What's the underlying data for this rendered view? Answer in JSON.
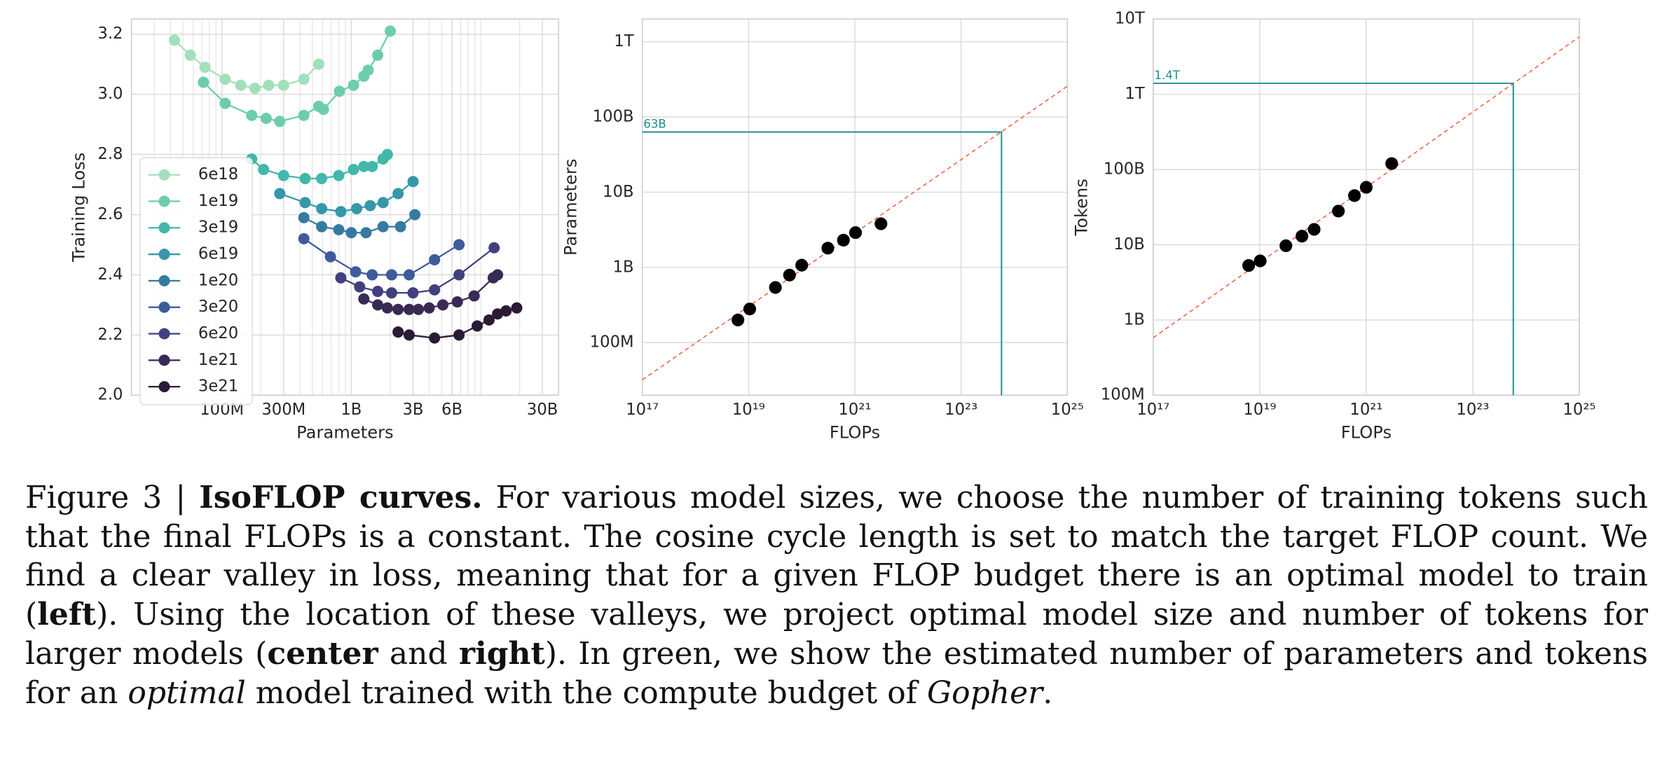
{
  "chart_data": [
    {
      "type": "line",
      "xlabel": "Parameters",
      "ylabel": "Training Loss",
      "xscale": "log",
      "xlim": [
        20000000,
        40000000000
      ],
      "ylim": [
        2.0,
        3.25
      ],
      "xticks": [
        {
          "value": 100000000,
          "label": "100M"
        },
        {
          "value": 300000000,
          "label": "300M"
        },
        {
          "value": 1000000000,
          "label": "1B"
        },
        {
          "value": 3000000000,
          "label": "3B"
        },
        {
          "value": 6000000000,
          "label": "6B"
        },
        {
          "value": 30000000000,
          "label": "30B"
        }
      ],
      "yticks": [
        {
          "value": 2,
          "label": "2.0"
        },
        2.2,
        2.4,
        2.6,
        2.8,
        {
          "value": 3,
          "label": "3.0"
        },
        3.2
      ],
      "grid": true,
      "minor_grid": true,
      "legend": "center left",
      "series": [
        {
          "name": "6e18",
          "color": "#a3dfba",
          "x": [
            43000000,
            57000000,
            74000000,
            106000000,
            140000000,
            180000000,
            230000000,
            300000000,
            430000000,
            560000000
          ],
          "values": [
            3.18,
            3.13,
            3.09,
            3.05,
            3.03,
            3.02,
            3.03,
            3.03,
            3.05,
            3.1
          ]
        },
        {
          "name": "1e19",
          "color": "#6ccdad",
          "x": [
            72000000,
            106000000,
            170000000,
            220000000,
            280000000,
            430000000,
            560000000,
            610000000,
            810000000,
            1040000000,
            1250000000,
            1350000000,
            1600000000,
            2000000000
          ],
          "values": [
            3.04,
            2.97,
            2.93,
            2.92,
            2.91,
            2.93,
            2.96,
            2.95,
            3.01,
            3.03,
            3.06,
            3.08,
            3.13,
            3.21
          ]
        },
        {
          "name": "3e19",
          "color": "#42b7aa",
          "x": [
            170000000,
            210000000,
            300000000,
            440000000,
            590000000,
            800000000,
            1040000000,
            1250000000,
            1450000000,
            1760000000,
            1900000000
          ],
          "values": [
            2.785,
            2.75,
            2.73,
            2.72,
            2.72,
            2.73,
            2.75,
            2.76,
            2.76,
            2.785,
            2.8
          ]
        },
        {
          "name": "6e19",
          "color": "#3597a9",
          "x": [
            280000000,
            440000000,
            590000000,
            830000000,
            1100000000,
            1400000000,
            1760000000,
            2300000000,
            3000000000
          ],
          "values": [
            2.67,
            2.64,
            2.62,
            2.61,
            2.62,
            2.63,
            2.64,
            2.67,
            2.71
          ]
        },
        {
          "name": "1e20",
          "color": "#367aa2",
          "x": [
            430000000,
            590000000,
            800000000,
            1000000000,
            1300000000,
            1760000000,
            2400000000,
            3100000000
          ],
          "values": [
            2.59,
            2.56,
            2.55,
            2.54,
            2.54,
            2.56,
            2.56,
            2.6
          ]
        },
        {
          "name": "3e20",
          "color": "#3e5b9c",
          "x": [
            430000000,
            690000000,
            1080000000,
            1450000000,
            2050000000,
            2800000000,
            4400000000,
            6800000000
          ],
          "values": [
            2.52,
            2.46,
            2.41,
            2.4,
            2.4,
            2.4,
            2.45,
            2.5
          ]
        },
        {
          "name": "6e20",
          "color": "#423f80",
          "x": [
            830000000,
            1160000000,
            1600000000,
            2050000000,
            3000000000,
            4400000000,
            6800000000,
            12700000000
          ],
          "values": [
            2.39,
            2.36,
            2.345,
            2.34,
            2.34,
            2.35,
            2.4,
            2.49
          ]
        },
        {
          "name": "1e21",
          "color": "#382a54",
          "x": [
            1250000000,
            1600000000,
            1900000000,
            2300000000,
            2800000000,
            3300000000,
            4000000000,
            5100000000,
            6600000000,
            8900000000,
            12500000000,
            13500000000
          ],
          "values": [
            2.32,
            2.3,
            2.29,
            2.285,
            2.285,
            2.285,
            2.29,
            2.3,
            2.31,
            2.33,
            2.39,
            2.4
          ]
        },
        {
          "name": "3e21",
          "color": "#2a1b35",
          "x": [
            2300000000,
            2800000000,
            4400000000,
            6800000000,
            9400000000,
            11600000000,
            13500000000,
            15700000000,
            19000000000
          ],
          "values": [
            2.21,
            2.2,
            2.19,
            2.2,
            2.23,
            2.25,
            2.27,
            2.28,
            2.29
          ]
        }
      ]
    },
    {
      "type": "scatter",
      "xlabel": "FLOPs",
      "ylabel": "Parameters",
      "xscale": "log",
      "yscale": "log",
      "xlim": [
        1e+17,
        1e+25
      ],
      "ylim": [
        20000000,
        2000000000000
      ],
      "xticks": [
        {
          "value": 1e+17,
          "label": "10¹⁷"
        },
        {
          "value": 1e+19,
          "label": "10¹⁹"
        },
        {
          "value": 1e+21,
          "label": "10²¹"
        },
        {
          "value": 1e+23,
          "label": "10²³"
        },
        {
          "value": 1e+25,
          "label": "10²⁵"
        }
      ],
      "yticks": [
        {
          "value": 100000000,
          "label": "100M"
        },
        {
          "value": 1000000000,
          "label": "1B"
        },
        {
          "value": 10000000000,
          "label": "10B"
        },
        {
          "value": 100000000000,
          "label": "100B"
        },
        {
          "value": 1000000000000,
          "label": "1T"
        }
      ],
      "grid": true,
      "color": "#000000",
      "x": [
        6.3e+18,
        1.05e+19,
        3.2e+19,
        5.9e+19,
        1e+20,
        3.1e+20,
        6.1e+20,
        1.03e+21,
        3.1e+21
      ],
      "values": [
        200000000,
        280000000,
        540000000,
        790000000,
        1070000000,
        1800000000,
        2300000000,
        2900000000,
        3800000000
      ],
      "fit": {
        "color": "#f0603f",
        "x": [
          1e+17,
          1e+25
        ],
        "values": [
          32000000,
          256000000000
        ]
      },
      "projection": {
        "color": "#1f8f8c",
        "x": 5.76e+23,
        "y": 63000000000,
        "label": "63B"
      }
    },
    {
      "type": "scatter",
      "xlabel": "FLOPs",
      "ylabel": "Tokens",
      "xscale": "log",
      "yscale": "log",
      "xlim": [
        1e+17,
        1e+25
      ],
      "ylim": [
        100000000,
        10000000000000
      ],
      "xticks": [
        {
          "value": 1e+17,
          "label": "10¹⁷"
        },
        {
          "value": 1e+19,
          "label": "10¹⁹"
        },
        {
          "value": 1e+21,
          "label": "10²¹"
        },
        {
          "value": 1e+23,
          "label": "10²³"
        },
        {
          "value": 1e+25,
          "label": "10²⁵"
        }
      ],
      "yticks": [
        {
          "value": 100000000,
          "label": "100M"
        },
        {
          "value": 1000000000,
          "label": "1B"
        },
        {
          "value": 10000000000,
          "label": "10B"
        },
        {
          "value": 100000000000,
          "label": "100B"
        },
        {
          "value": 1000000000000,
          "label": "1T"
        },
        {
          "value": 10000000000000,
          "label": "10T"
        }
      ],
      "grid": true,
      "color": "#000000",
      "x": [
        6.2e+18,
        1.02e+19,
        3.1e+19,
        6.2e+19,
        1.05e+20,
        3e+20,
        6e+20,
        1e+21,
        3e+21
      ],
      "values": [
        5300000000,
        6100000000,
        9700000000,
        13000000000,
        16000000000,
        28000000000,
        45000000000,
        58000000000,
        120000000000
      ],
      "fit": {
        "color": "#f0603f",
        "x": [
          1e+17,
          1e+25
        ],
        "values": [
          580000000,
          5800000000000
        ]
      },
      "projection": {
        "color": "#1f8f8c",
        "x": 5.76e+23,
        "y": 1400000000000,
        "label": "1.4T"
      }
    }
  ],
  "caption": [
    {
      "text": "Figure 3 | "
    },
    {
      "text": "IsoFLOP curves.",
      "bold": true
    },
    {
      "text": " For various model sizes, we choose the number of training tokens such that the final FLOPs is a constant. The cosine cycle length is set to match the target FLOP count. We find a clear valley in loss, meaning that for a given FLOP budget there is an optimal model to train ("
    },
    {
      "text": "left",
      "bold": true
    },
    {
      "text": "). Using the location of these valleys, we project optimal model size and number of tokens for larger models ("
    },
    {
      "text": "center",
      "bold": true
    },
    {
      "text": " and "
    },
    {
      "text": "right",
      "bold": true
    },
    {
      "text": "). In green, we show the estimated number of parameters and tokens for an "
    },
    {
      "text": "optimal",
      "italic": true
    },
    {
      "text": " model trained with the compute budget of "
    },
    {
      "text": "Gopher",
      "italic": true
    },
    {
      "text": "."
    }
  ]
}
